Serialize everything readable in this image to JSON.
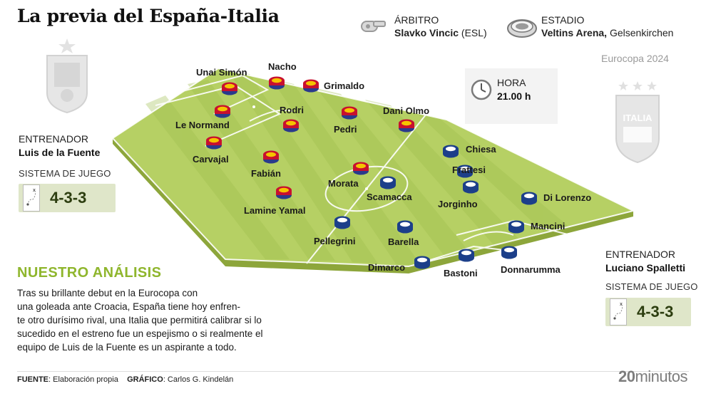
{
  "title": "La previa del España-Italia",
  "referee": {
    "label": "ÁRBITRO",
    "name": "Slavko Vincic",
    "country": "(ESL)",
    "icon": "whistle-icon"
  },
  "stadium": {
    "label": "ESTADIO",
    "name": "Veltins Arena,",
    "city": "Gelsenkirchen",
    "icon": "stadium-icon"
  },
  "competition": "Eurocopa 2024",
  "time": {
    "label": "HORA",
    "value": "21.00 h",
    "icon": "clock-icon"
  },
  "spain": {
    "coach_label": "ENTRENADOR",
    "coach": "Luis de la Fuente",
    "system_label": "SISTEMA DE JUEGO",
    "system": "4-3-3",
    "crest": "spain-crest-icon",
    "players": [
      "Unai Simón",
      "Nacho",
      "Grimaldo",
      "Le Normand",
      "Rodri",
      "Pedri",
      "Dani Olmo",
      "Carvajal",
      "Fabián",
      "Morata",
      "Lamine Yamal"
    ],
    "marker_colors": [
      "#c8102e",
      "#f5c400",
      "#2a3a8c"
    ]
  },
  "italy": {
    "coach_label": "ENTRENADOR",
    "coach": "Luciano Spalletti",
    "system_label": "SISTEMA DE JUEGO",
    "system": "4-3-3",
    "crest": "italy-crest-icon",
    "players": [
      "Chiesa",
      "Frattesi",
      "Scamacca",
      "Jorginho",
      "Di Lorenzo",
      "Pellegrini",
      "Barella",
      "Mancini",
      "Dimarco",
      "Bastoni",
      "Donnarumma"
    ],
    "marker_colors": [
      "#1c3f8a",
      "#ffffff"
    ]
  },
  "analysis": {
    "title": "NUESTRO ANÁLISIS",
    "lines": [
      "Tras su brillante debut en la Eurocopa con",
      "una goleada ante Croacia, España tiene hoy enfren-",
      "te otro durísimo rival, una Italia que permitirá calibrar si lo",
      "sucedido en el estreno fue un espejismo o si realmente el",
      "equipo de Luis de la Fuente es un aspirante a todo."
    ]
  },
  "footer": {
    "source_label": "FUENTE",
    "source": ": Elaboración propia",
    "graphic_label": "GRÁFICO",
    "graphic": ": Carlos G. Kindelán",
    "brand_num": "20",
    "brand_word": "minutos"
  },
  "colors": {
    "pitch_light": "#b9d36a",
    "pitch_dark": "#a7c455",
    "pitch_side": "#93ae3c",
    "accent": "#8fb62d"
  }
}
